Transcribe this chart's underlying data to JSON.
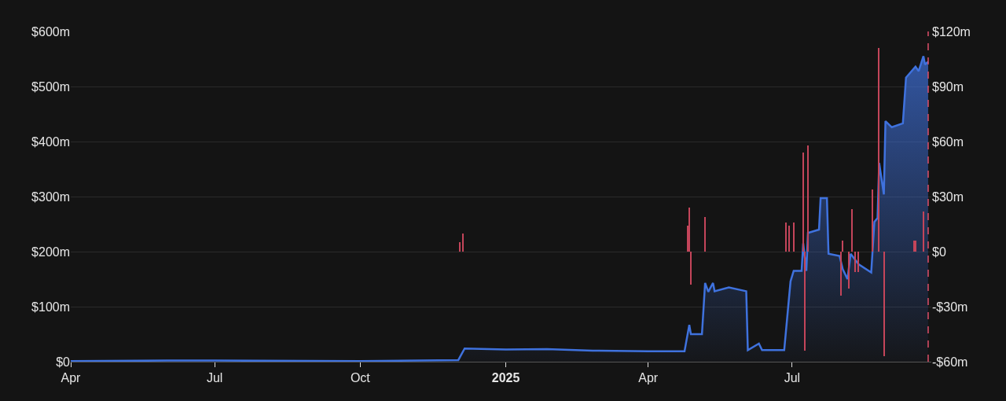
{
  "chart_data": {
    "type": "area",
    "grid": "y",
    "xlim": [
      "2024-04-01",
      "2025-09-27"
    ],
    "xticks": [
      {
        "value": "2024-04-01",
        "label": "Apr"
      },
      {
        "value": "2024-07-01",
        "label": "Jul"
      },
      {
        "value": "2024-10-01",
        "label": "Oct"
      },
      {
        "value": "2025-01-01",
        "label": "2025"
      },
      {
        "value": "2025-04-01",
        "label": "Apr"
      },
      {
        "value": "2025-07-01",
        "label": "Jul"
      }
    ],
    "ylim": [
      0,
      600
    ],
    "yticks": [
      {
        "value": 0,
        "label": "$0"
      },
      {
        "value": 100,
        "label": "$100m"
      },
      {
        "value": 200,
        "label": "$200m"
      },
      {
        "value": 300,
        "label": "$300m"
      },
      {
        "value": 400,
        "label": "$400m"
      },
      {
        "value": 500,
        "label": "$500m"
      },
      {
        "value": 600,
        "label": "$600m"
      }
    ],
    "y2lim": [
      -60,
      120
    ],
    "y2ticks": [
      {
        "value": -60,
        "label": "-$60m"
      },
      {
        "value": -30,
        "label": "-$30m"
      },
      {
        "value": 0,
        "label": "$0"
      },
      {
        "value": 30,
        "label": "$30m"
      },
      {
        "value": 60,
        "label": "$60m"
      },
      {
        "value": 90,
        "label": "$90m"
      },
      {
        "value": 120,
        "label": "$120m"
      }
    ],
    "series": [
      {
        "color": "#3f72de",
        "x": [
          "2024-04-01",
          "2024-06-01",
          "2024-07-01",
          "2024-10-01",
          "2024-12-02",
          "2024-12-06",
          "2025-01-01",
          "2025-01-27",
          "2025-02-25",
          "2025-04-01",
          "2025-04-24",
          "2025-04-27",
          "2025-04-28",
          "2025-05-05",
          "2025-05-07",
          "2025-05-09",
          "2025-05-12",
          "2025-05-13",
          "2025-05-22",
          "2025-06-02",
          "2025-06-03",
          "2025-06-10",
          "2025-06-12",
          "2025-06-26",
          "2025-06-30",
          "2025-07-02",
          "2025-07-07",
          "2025-07-08",
          "2025-07-10",
          "2025-07-11",
          "2025-07-18",
          "2025-07-19",
          "2025-07-23",
          "2025-07-24",
          "2025-07-31",
          "2025-08-02",
          "2025-08-05",
          "2025-08-07",
          "2025-08-12",
          "2025-08-20",
          "2025-08-22",
          "2025-08-24",
          "2025-08-25",
          "2025-08-28",
          "2025-08-29",
          "2025-09-02",
          "2025-09-09",
          "2025-09-11",
          "2025-09-17",
          "2025-09-19",
          "2025-09-22",
          "2025-09-23",
          "2025-09-25"
        ],
        "values": [
          1,
          2,
          2,
          1,
          3,
          24,
          22,
          23,
          20,
          19,
          19,
          67,
          50,
          50,
          143,
          127,
          143,
          128,
          135,
          128,
          21,
          33,
          21,
          21,
          146,
          165,
          165,
          215,
          165,
          234,
          240,
          297,
          297,
          196,
          192,
          168,
          150,
          196,
          177,
          162,
          254,
          261,
          361,
          304,
          437,
          426,
          433,
          516,
          536,
          528,
          555,
          540,
          545
        ]
      },
      {
        "type": "bar",
        "axis": "y2",
        "color": "#c4455a",
        "x": [
          "2024-12-03",
          "2024-12-05",
          "2025-04-26",
          "2025-04-27",
          "2025-04-28",
          "2025-05-07",
          "2025-06-27",
          "2025-06-29",
          "2025-07-02",
          "2025-07-08",
          "2025-07-09",
          "2025-07-11",
          "2025-08-01",
          "2025-08-02",
          "2025-08-06",
          "2025-08-08",
          "2025-08-10",
          "2025-08-12",
          "2025-08-21",
          "2025-08-25",
          "2025-08-28",
          "2025-09-16",
          "2025-09-17",
          "2025-09-22"
        ],
        "values": [
          5,
          10,
          14,
          24,
          -18,
          19,
          16,
          14,
          16,
          54,
          -54,
          58,
          -24,
          6,
          -20,
          23,
          -11,
          -11,
          34,
          111,
          -57,
          6,
          6,
          22
        ]
      }
    ],
    "ref_lines": [
      {
        "axis": "x",
        "value": "2025-09-25",
        "color": "#e0506a",
        "line_style": "dashed"
      }
    ]
  }
}
